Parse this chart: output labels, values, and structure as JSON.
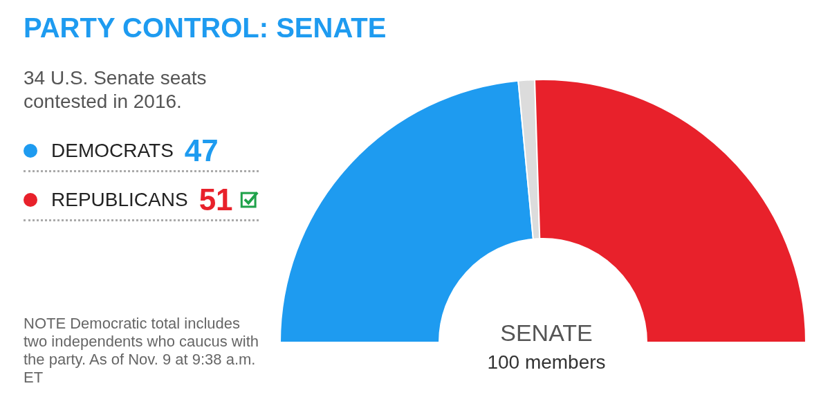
{
  "chart_data": {
    "type": "donut",
    "title": "PARTY CONTROL: SENATE",
    "subtitle": "34 U.S. Senate seats contested in 2016.",
    "categories": [
      "DEMOCRATS",
      null,
      "REPUBLICANS"
    ],
    "values": [
      47,
      2,
      51
    ],
    "colors": [
      "#1e9bf0",
      "#dcdcdc",
      "#e8212b"
    ],
    "value_labels": [
      "47",
      null,
      "51"
    ],
    "legend": "left",
    "annotations": [
      "SENATE",
      "100 members",
      "NOTE Democratic total includes two independents who caucus with the party. As of Nov. 9 at 9:38 a.m. ET"
    ]
  }
}
